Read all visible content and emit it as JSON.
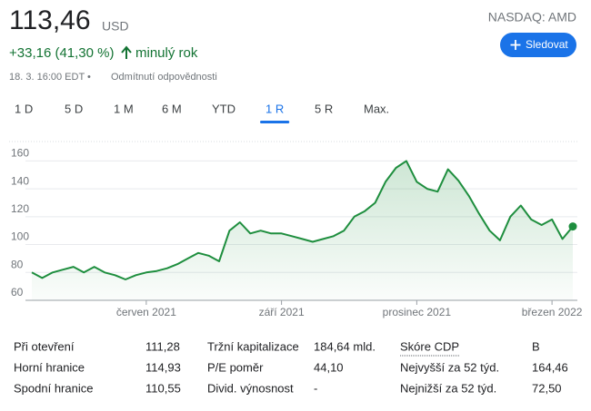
{
  "header": {
    "price": "113,46",
    "currency": "USD",
    "change": "+33,16 (41,30 %)",
    "period": "minulý rok",
    "timestamp": "18. 3. 16:00 EDT •",
    "disclaimer": "Odmítnutí odpovědnosti",
    "exchange": "NASDAQ: AMD",
    "follow_button": "Sledovat"
  },
  "tabs": [
    "1 D",
    "5 D",
    "1 M",
    "6 M",
    "YTD",
    "1 R",
    "5 R",
    "Max."
  ],
  "active_tab": 5,
  "chart_data": {
    "type": "line",
    "color": "#1e8e3e",
    "categories": [
      null,
      null,
      null,
      null,
      null,
      null,
      null,
      null,
      null,
      null,
      null,
      "červen 2021",
      null,
      null,
      null,
      null,
      null,
      null,
      null,
      null,
      null,
      null,
      null,
      null,
      "září 2021",
      null,
      null,
      null,
      null,
      null,
      null,
      null,
      null,
      null,
      null,
      null,
      null,
      "prosinec 2021",
      null,
      null,
      null,
      null,
      null,
      null,
      null,
      null,
      null,
      null,
      null,
      null,
      "březen 2022",
      null,
      null
    ],
    "values": [
      80,
      76,
      80,
      82,
      84,
      80,
      84,
      80,
      78,
      75,
      78,
      80,
      81,
      83,
      86,
      90,
      94,
      92,
      88,
      110,
      116,
      108,
      110,
      108,
      108,
      106,
      104,
      102,
      104,
      106,
      110,
      120,
      124,
      130,
      145,
      155,
      160,
      145,
      140,
      138,
      154,
      146,
      135,
      122,
      110,
      103,
      120,
      128,
      118,
      114,
      118,
      104,
      113
    ],
    "ylim": [
      60,
      170
    ],
    "yticks": [
      60,
      80,
      100,
      120,
      140,
      160
    ],
    "grid": true
  },
  "stats": {
    "rows": [
      [
        "Při otevření",
        "111,28",
        "Tržní kapitalizace",
        "184,64 mld.",
        "Skóre CDP",
        "B"
      ],
      [
        "Horní hranice",
        "114,93",
        "P/E poměr",
        "44,10",
        "Nejvyšší za 52 týd.",
        "164,46"
      ],
      [
        "Spodní hranice",
        "110,55",
        "Divid. výnosnost",
        "-",
        "Nejnižší za 52 týd.",
        "72,50"
      ]
    ]
  }
}
